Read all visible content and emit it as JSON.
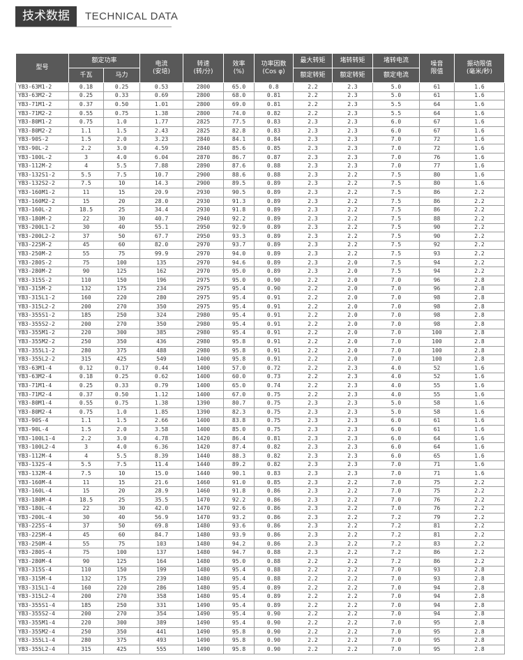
{
  "header": {
    "title": "技术数据",
    "subtitle": "TECHNICAL DATA"
  },
  "table": {
    "head": {
      "model": "型号",
      "power": "额定功率",
      "kw": "千瓦",
      "hp": "马力",
      "current": [
        "电流",
        "(安培)"
      ],
      "speed": [
        "转速",
        "(转/分)"
      ],
      "eff": [
        "效率",
        "(%)"
      ],
      "pf": [
        "功率因数",
        "(Cos φ)"
      ],
      "tmax": [
        "最大转矩",
        "额定转矩"
      ],
      "tst": [
        "堵转转矩",
        "额定转矩"
      ],
      "ist": [
        "堵转电流",
        "额定电流"
      ],
      "noise": [
        "噪音",
        "限值"
      ],
      "vib": [
        "振动限值",
        "(毫米/秒)"
      ]
    },
    "rows": [
      [
        "YB3-63M1-2",
        "0.18",
        "0.25",
        "0.53",
        "2800",
        "65.0",
        "0.8",
        "2.2",
        "2.3",
        "5.0",
        "61",
        "1.6"
      ],
      [
        "YB3-63M2-2",
        "0.25",
        "0.33",
        "0.69",
        "2800",
        "68.0",
        "0.81",
        "2.2",
        "2.3",
        "5.0",
        "61",
        "1.6"
      ],
      [
        "YB3-71M1-2",
        "0.37",
        "0.50",
        "1.01",
        "2800",
        "69.0",
        "0.81",
        "2.2",
        "2.3",
        "5.5",
        "64",
        "1.6"
      ],
      [
        "YB3-71M2-2",
        "0.55",
        "0.75",
        "1.38",
        "2800",
        "74.0",
        "0.82",
        "2.2",
        "2.3",
        "5.5",
        "64",
        "1.6"
      ],
      [
        "YB3-80M1-2",
        "0.75",
        "1.0",
        "1.77",
        "2825",
        "77.5",
        "0.83",
        "2.3",
        "2.3",
        "6.0",
        "67",
        "1.6"
      ],
      [
        "YB3-80M2-2",
        "1.1",
        "1.5",
        "2.43",
        "2825",
        "82.8",
        "0.83",
        "2.3",
        "2.3",
        "6.0",
        "67",
        "1.6"
      ],
      [
        "YB3-90S-2",
        "1.5",
        "2.0",
        "3.23",
        "2840",
        "84.1",
        "0.84",
        "2.3",
        "2.3",
        "7.0",
        "72",
        "1.6"
      ],
      [
        "YB3-90L-2",
        "2.2",
        "3.0",
        "4.59",
        "2840",
        "85.6",
        "0.85",
        "2.3",
        "2.3",
        "7.0",
        "72",
        "1.6"
      ],
      [
        "YB3-100L-2",
        "3",
        "4.0",
        "6.04",
        "2870",
        "86.7",
        "0.87",
        "2.3",
        "2.3",
        "7.0",
        "76",
        "1.6"
      ],
      [
        "YB3-112M-2",
        "4",
        "5.5",
        "7.88",
        "2890",
        "87.6",
        "0.88",
        "2.3",
        "2.3",
        "7.0",
        "77",
        "1.6"
      ],
      [
        "YB3-132S1-2",
        "5.5",
        "7.5",
        "10.7",
        "2900",
        "88.6",
        "0.88",
        "2.3",
        "2.2",
        "7.5",
        "80",
        "1.6"
      ],
      [
        "YB3-132S2-2",
        "7.5",
        "10",
        "14.3",
        "2900",
        "89.5",
        "0.89",
        "2.3",
        "2.2",
        "7.5",
        "80",
        "1.6"
      ],
      [
        "YB3-160M1-2",
        "11",
        "15",
        "20.9",
        "2930",
        "90.5",
        "0.89",
        "2.3",
        "2.2",
        "7.5",
        "86",
        "2.2"
      ],
      [
        "YB3-160M2-2",
        "15",
        "20",
        "28.0",
        "2930",
        "91.3",
        "0.89",
        "2.3",
        "2.2",
        "7.5",
        "86",
        "2.2"
      ],
      [
        "YB3-160L-2",
        "18.5",
        "25",
        "34.4",
        "2930",
        "91.8",
        "0.89",
        "2.3",
        "2.2",
        "7.5",
        "86",
        "2.2"
      ],
      [
        "YB3-180M-2",
        "22",
        "30",
        "40.7",
        "2940",
        "92.2",
        "0.89",
        "2.3",
        "2.2",
        "7.5",
        "88",
        "2.2"
      ],
      [
        "YB3-200L1-2",
        "30",
        "40",
        "55.1",
        "2950",
        "92.9",
        "0.89",
        "2.3",
        "2.2",
        "7.5",
        "90",
        "2.2"
      ],
      [
        "YB3-200L2-2",
        "37",
        "50",
        "67.7",
        "2950",
        "93.3",
        "0.89",
        "2.3",
        "2.2",
        "7.5",
        "90",
        "2.2"
      ],
      [
        "YB3-225M-2",
        "45",
        "60",
        "82.0",
        "2970",
        "93.7",
        "0.89",
        "2.3",
        "2.2",
        "7.5",
        "92",
        "2.2"
      ],
      [
        "YB3-250M-2",
        "55",
        "75",
        "99.9",
        "2970",
        "94.0",
        "0.89",
        "2.3",
        "2.2",
        "7.5",
        "93",
        "2.2"
      ],
      [
        "YB3-280S-2",
        "75",
        "100",
        "135",
        "2970",
        "94.6",
        "0.89",
        "2.3",
        "2.0",
        "7.5",
        "94",
        "2.2"
      ],
      [
        "YB3-280M-2",
        "90",
        "125",
        "162",
        "2970",
        "95.0",
        "0.89",
        "2.3",
        "2.0",
        "7.5",
        "94",
        "2.2"
      ],
      [
        "YB3-315S-2",
        "110",
        "150",
        "196",
        "2975",
        "95.0",
        "0.90",
        "2.2",
        "2.0",
        "7.0",
        "96",
        "2.8"
      ],
      [
        "YB3-315M-2",
        "132",
        "175",
        "234",
        "2975",
        "95.4",
        "0.90",
        "2.2",
        "2.0",
        "7.0",
        "96",
        "2.8"
      ],
      [
        "YB3-315L1-2",
        "160",
        "220",
        "280",
        "2975",
        "95.4",
        "0.91",
        "2.2",
        "2.0",
        "7.0",
        "98",
        "2.8"
      ],
      [
        "YB3-315L2-2",
        "200",
        "270",
        "350",
        "2975",
        "95.4",
        "0.91",
        "2.2",
        "2.0",
        "7.0",
        "98",
        "2.8"
      ],
      [
        "YB3-355S1-2",
        "185",
        "250",
        "324",
        "2980",
        "95.4",
        "0.91",
        "2.2",
        "2.0",
        "7.0",
        "98",
        "2.8"
      ],
      [
        "YB3-355S2-2",
        "200",
        "270",
        "350",
        "2980",
        "95.4",
        "0.91",
        "2.2",
        "2.0",
        "7.0",
        "98",
        "2.8"
      ],
      [
        "YB3-355M1-2",
        "220",
        "300",
        "385",
        "2980",
        "95.4",
        "0.91",
        "2.2",
        "2.0",
        "7.0",
        "100",
        "2.8"
      ],
      [
        "YB3-355M2-2",
        "250",
        "350",
        "436",
        "2980",
        "95.8",
        "0.91",
        "2.2",
        "2.0",
        "7.0",
        "100",
        "2.8"
      ],
      [
        "YB3-355L1-2",
        "280",
        "375",
        "488",
        "2980",
        "95.8",
        "0.91",
        "2.2",
        "2.0",
        "7.0",
        "100",
        "2.8"
      ],
      [
        "YB3-355L2-2",
        "315",
        "425",
        "549",
        "1400",
        "95.8",
        "0.91",
        "2.2",
        "2.0",
        "7.0",
        "100",
        "2.8"
      ],
      [
        "YB3-63M1-4",
        "0.12",
        "0.17",
        "0.44",
        "1400",
        "57.0",
        "0.72",
        "2.2",
        "2.3",
        "4.0",
        "52",
        "1.6"
      ],
      [
        "YB3-63M2-4",
        "0.18",
        "0.25",
        "0.62",
        "1400",
        "60.0",
        "0.73",
        "2.2",
        "2.3",
        "4.0",
        "52",
        "1.6"
      ],
      [
        "YB3-71M1-4",
        "0.25",
        "0.33",
        "0.79",
        "1400",
        "65.0",
        "0.74",
        "2.2",
        "2.3",
        "4.0",
        "55",
        "1.6"
      ],
      [
        "YB3-71M2-4",
        "0.37",
        "0.50",
        "1.12",
        "1400",
        "67.0",
        "0.75",
        "2.2",
        "2.3",
        "4.0",
        "55",
        "1.6"
      ],
      [
        "YB3-80M1-4",
        "0.55",
        "0.75",
        "1.38",
        "1390",
        "80.7",
        "0.75",
        "2.3",
        "2.3",
        "5.0",
        "58",
        "1.6"
      ],
      [
        "YB3-80M2-4",
        "0.75",
        "1.0",
        "1.85",
        "1390",
        "82.3",
        "0.75",
        "2.3",
        "2.3",
        "5.0",
        "58",
        "1.6"
      ],
      [
        "YB3-90S-4",
        "1.1",
        "1.5",
        "2.66",
        "1400",
        "83.8",
        "0.75",
        "2.3",
        "2.3",
        "6.0",
        "61",
        "1.6"
      ],
      [
        "YB3-90L-4",
        "1.5",
        "2.0",
        "3.58",
        "1400",
        "85.0",
        "0.75",
        "2.3",
        "2.3",
        "6.0",
        "61",
        "1.6"
      ],
      [
        "YB3-100L1-4",
        "2.2",
        "3.0",
        "4.78",
        "1420",
        "86.4",
        "0.81",
        "2.3",
        "2.3",
        "6.0",
        "64",
        "1.6"
      ],
      [
        "YB3-100L2-4",
        "3",
        "4.0",
        "6.36",
        "1420",
        "87.4",
        "0.82",
        "2.3",
        "2.3",
        "6.0",
        "64",
        "1.6"
      ],
      [
        "YB3-112M-4",
        "4",
        "5.5",
        "8.39",
        "1440",
        "88.3",
        "0.82",
        "2.3",
        "2.3",
        "6.0",
        "65",
        "1.6"
      ],
      [
        "YB3-132S-4",
        "5.5",
        "7.5",
        "11.4",
        "1440",
        "89.2",
        "0.82",
        "2.3",
        "2.3",
        "7.0",
        "71",
        "1.6"
      ],
      [
        "YB3-132M-4",
        "7.5",
        "10",
        "15.0",
        "1440",
        "90.1",
        "0.83",
        "2.3",
        "2.3",
        "7.0",
        "71",
        "1.6"
      ],
      [
        "YB3-160M-4",
        "11",
        "15",
        "21.6",
        "1460",
        "91.0",
        "0.85",
        "2.3",
        "2.2",
        "7.0",
        "75",
        "2.2"
      ],
      [
        "YB3-160L-4",
        "15",
        "20",
        "28.9",
        "1460",
        "91.8",
        "0.86",
        "2.3",
        "2.2",
        "7.0",
        "75",
        "2.2"
      ],
      [
        "YB3-180M-4",
        "18.5",
        "25",
        "35.5",
        "1470",
        "92.2",
        "0.86",
        "2.3",
        "2.2",
        "7.0",
        "76",
        "2.2"
      ],
      [
        "YB3-180L-4",
        "22",
        "30",
        "42.0",
        "1470",
        "92.6",
        "0.86",
        "2.3",
        "2.2",
        "7.0",
        "76",
        "2.2"
      ],
      [
        "YB3-200L-4",
        "30",
        "40",
        "56.9",
        "1470",
        "93.2",
        "0.86",
        "2.3",
        "2.2",
        "7.2",
        "79",
        "2.2"
      ],
      [
        "YB3-225S-4",
        "37",
        "50",
        "69.8",
        "1480",
        "93.6",
        "0.86",
        "2.3",
        "2.2",
        "7.2",
        "81",
        "2.2"
      ],
      [
        "YB3-225M-4",
        "45",
        "60",
        "84.7",
        "1480",
        "93.9",
        "0.86",
        "2.3",
        "2.2",
        "7.2",
        "81",
        "2.2"
      ],
      [
        "YB3-250M-4",
        "55",
        "75",
        "103",
        "1480",
        "94.2",
        "0.86",
        "2.3",
        "2.2",
        "7.2",
        "83",
        "2.2"
      ],
      [
        "YB3-280S-4",
        "75",
        "100",
        "137",
        "1480",
        "94.7",
        "0.88",
        "2.3",
        "2.2",
        "7.2",
        "86",
        "2.2"
      ],
      [
        "YB3-280M-4",
        "90",
        "125",
        "164",
        "1480",
        "95.0",
        "0.88",
        "2.2",
        "2.2",
        "7.2",
        "86",
        "2.2"
      ],
      [
        "YB3-315S-4",
        "110",
        "150",
        "199",
        "1480",
        "95.4",
        "0.88",
        "2.2",
        "2.2",
        "7.0",
        "93",
        "2.8"
      ],
      [
        "YB3-315M-4",
        "132",
        "175",
        "239",
        "1480",
        "95.4",
        "0.88",
        "2.2",
        "2.2",
        "7.0",
        "93",
        "2.8"
      ],
      [
        "YB3-315L1-4",
        "160",
        "220",
        "286",
        "1480",
        "95.4",
        "0.89",
        "2.2",
        "2.2",
        "7.0",
        "94",
        "2.8"
      ],
      [
        "YB3-315L2-4",
        "200",
        "270",
        "358",
        "1480",
        "95.4",
        "0.89",
        "2.2",
        "2.2",
        "7.0",
        "94",
        "2.8"
      ],
      [
        "YB3-355S1-4",
        "185",
        "250",
        "331",
        "1490",
        "95.4",
        "0.89",
        "2.2",
        "2.2",
        "7.0",
        "94",
        "2.8"
      ],
      [
        "YB3-355S2-4",
        "200",
        "270",
        "354",
        "1490",
        "95.4",
        "0.90",
        "2.2",
        "2.2",
        "7.0",
        "94",
        "2.8"
      ],
      [
        "YB3-355M1-4",
        "220",
        "300",
        "389",
        "1490",
        "95.4",
        "0.90",
        "2.2",
        "2.2",
        "7.0",
        "95",
        "2.8"
      ],
      [
        "YB3-355M2-4",
        "250",
        "350",
        "441",
        "1490",
        "95.8",
        "0.90",
        "2.2",
        "2.2",
        "7.0",
        "95",
        "2.8"
      ],
      [
        "YB3-355L1-4",
        "280",
        "375",
        "493",
        "1490",
        "95.8",
        "0.90",
        "2.2",
        "2.2",
        "7.0",
        "95",
        "2.8"
      ],
      [
        "YB3-355L2-4",
        "315",
        "425",
        "555",
        "1490",
        "95.8",
        "0.90",
        "2.2",
        "2.2",
        "7.0",
        "95",
        "2.8"
      ]
    ]
  }
}
